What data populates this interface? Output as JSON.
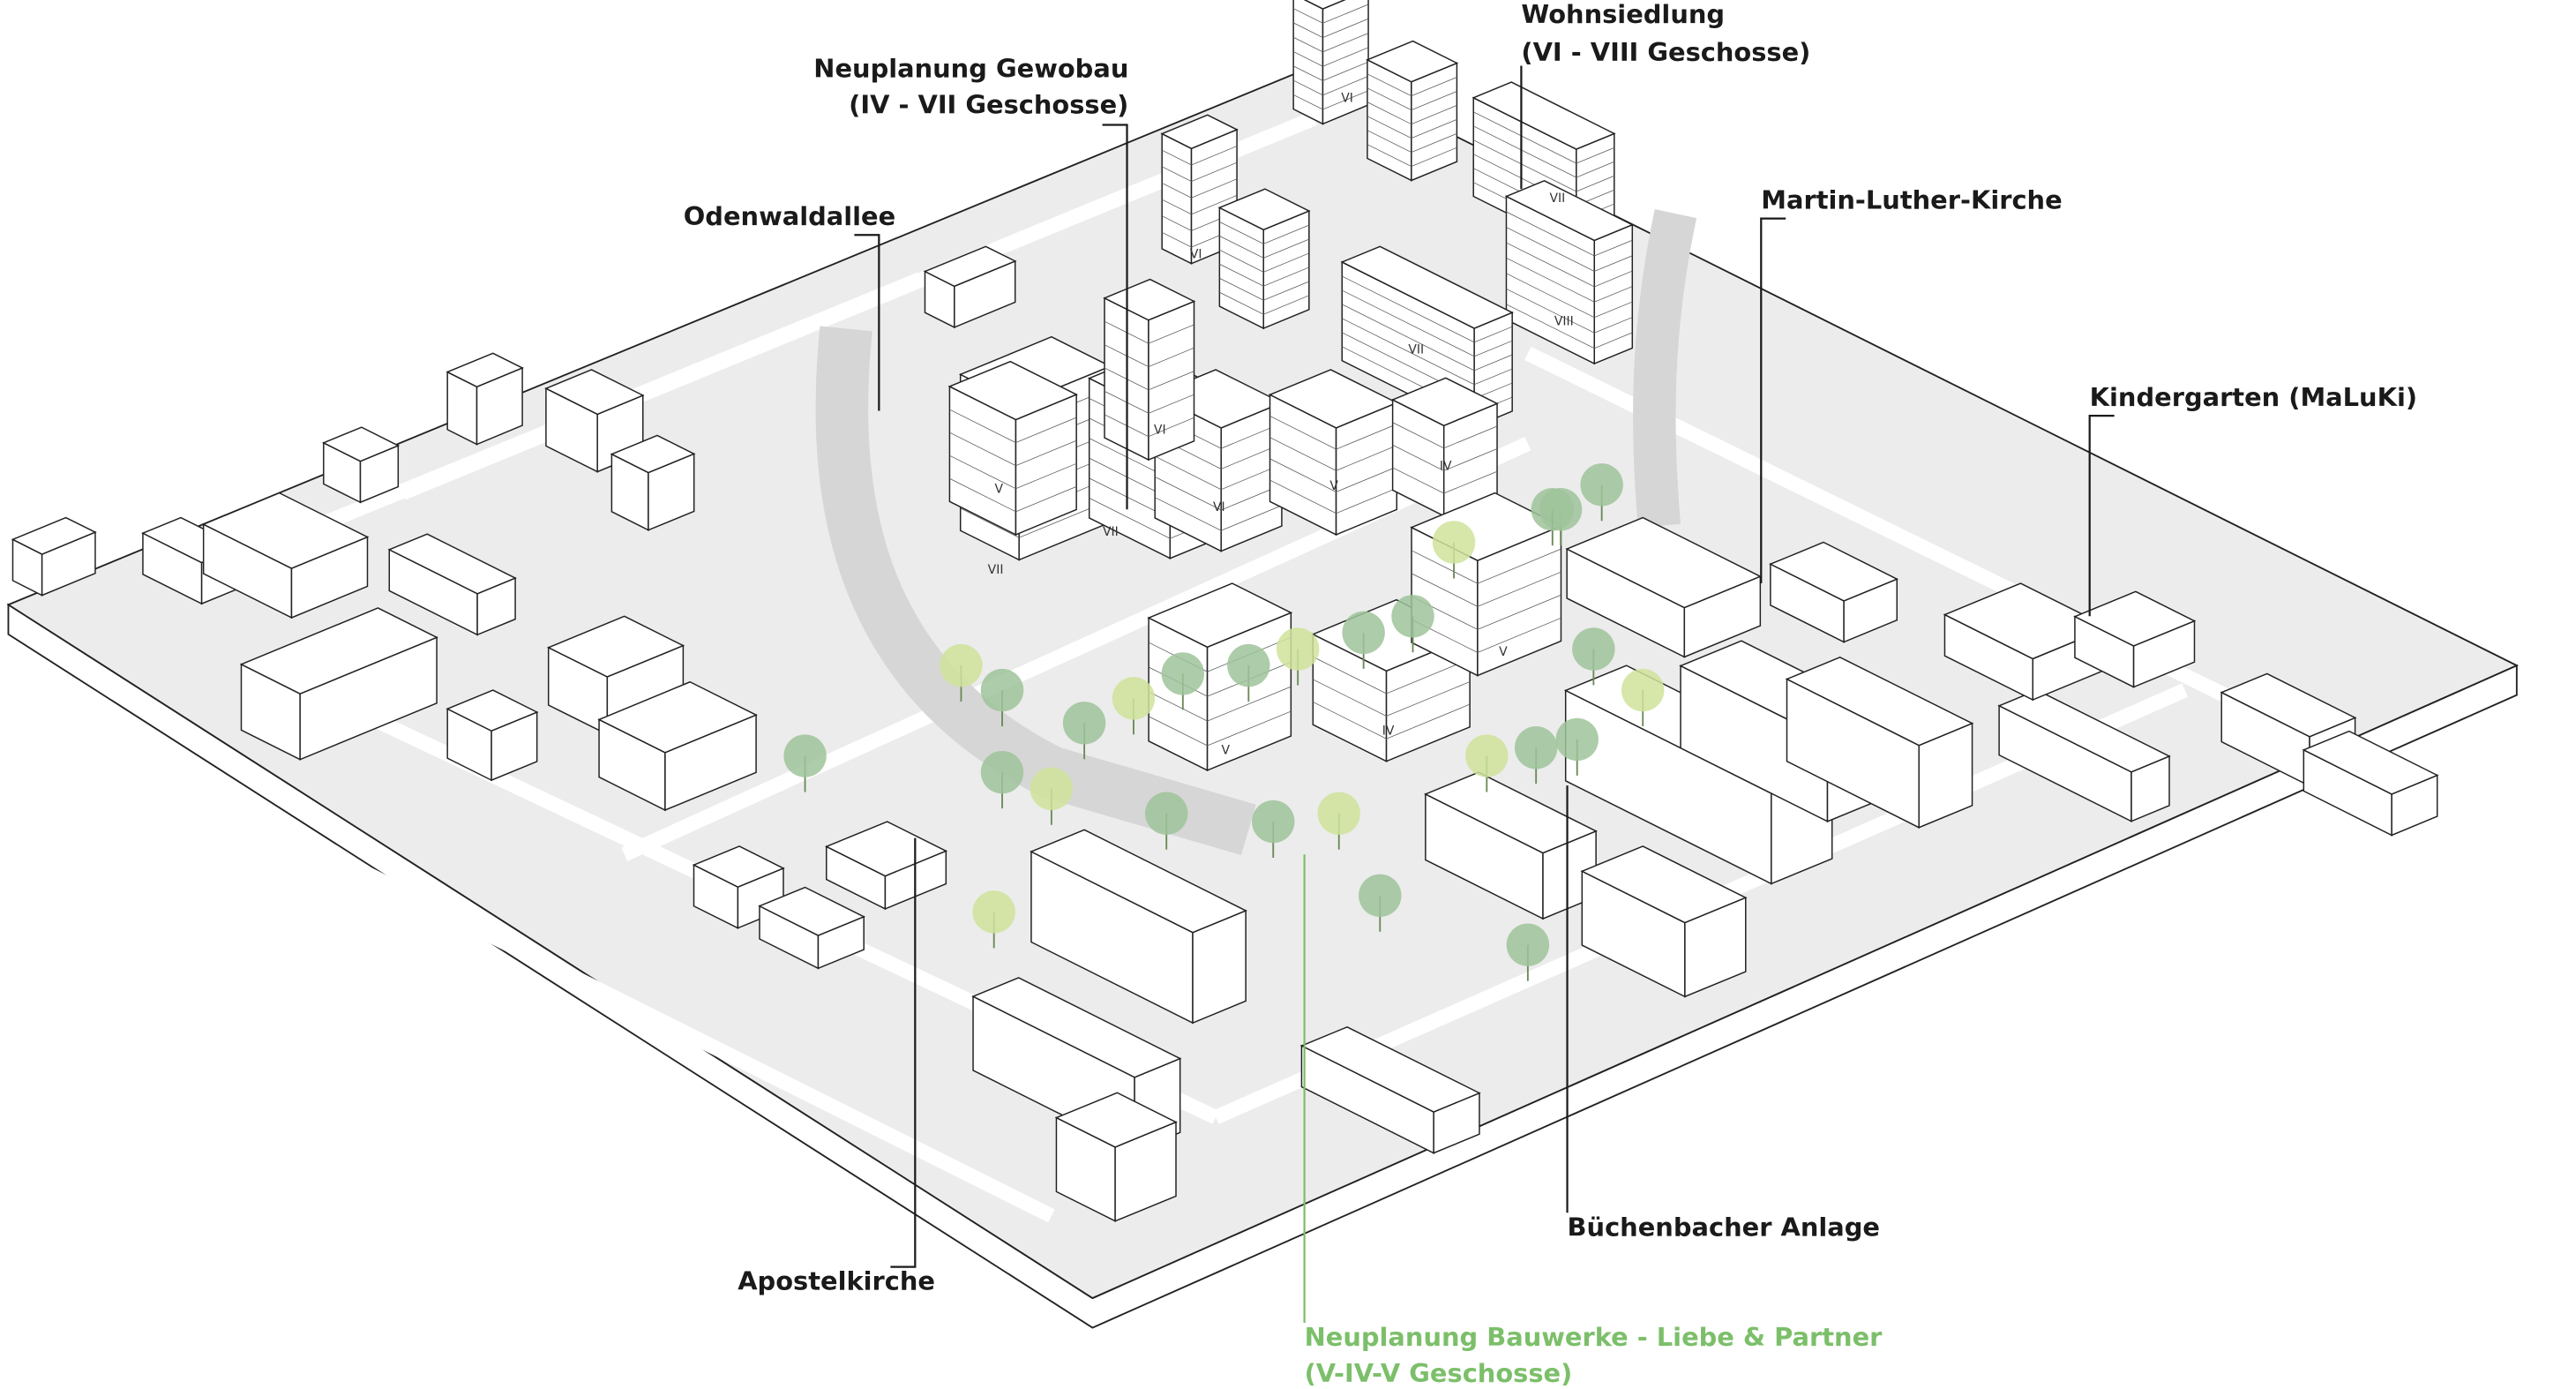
{
  "labels": {
    "wohnsiedlung": {
      "line1": "Wohnsiedlung",
      "line2": "(VI - VIII Geschosse)"
    },
    "gewobau": {
      "line1": "Neuplanung Gewobau",
      "line2": "(IV - VII Geschosse)"
    },
    "odenwaldallee": "Odenwaldallee",
    "kirche": "Martin-Luther-Kirche",
    "kindergarten": "Kindergarten (MaLuKi)",
    "anlage": "Büchenbacher Anlage",
    "apostelkirche": "Apostelkirche",
    "liebe_partner": {
      "line1": "Neuplanung Bauwerke - Liebe & Partner",
      "line2": "(V-IV-V Geschosse)"
    }
  },
  "floor_labels": [
    "VI",
    "VII",
    "VI",
    "VII",
    "VIII",
    "VI",
    "V",
    "V",
    "IV",
    "VII",
    "VII",
    "VI",
    "V",
    "IV",
    "V"
  ]
}
